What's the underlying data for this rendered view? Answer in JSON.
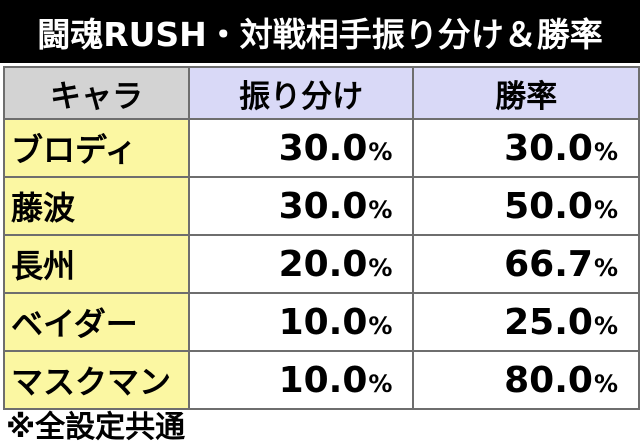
{
  "title": "闘魂RUSH・対戦相手振り分け＆勝率",
  "table": {
    "headers": [
      "キャラ",
      "振り分け",
      "勝率"
    ],
    "rows": [
      {
        "name": "ブロディ",
        "distribution": "30.0",
        "win_rate": "30.0"
      },
      {
        "name": "藤波",
        "distribution": "30.0",
        "win_rate": "50.0"
      },
      {
        "name": "長州",
        "distribution": "20.0",
        "win_rate": "66.7"
      },
      {
        "name": "ベイダー",
        "distribution": "10.0",
        "win_rate": "25.0"
      },
      {
        "name": "マスクマン",
        "distribution": "10.0",
        "win_rate": "80.0"
      }
    ],
    "percent_sign": "%"
  },
  "note": "※全設定共通",
  "colors": {
    "title_bg": "#000000",
    "header_name_bg": "#d3d3d3",
    "header_value_bg": "#d9d9f7",
    "name_cell_bg": "#fbf7a2",
    "grid": "#6e6e6e"
  }
}
